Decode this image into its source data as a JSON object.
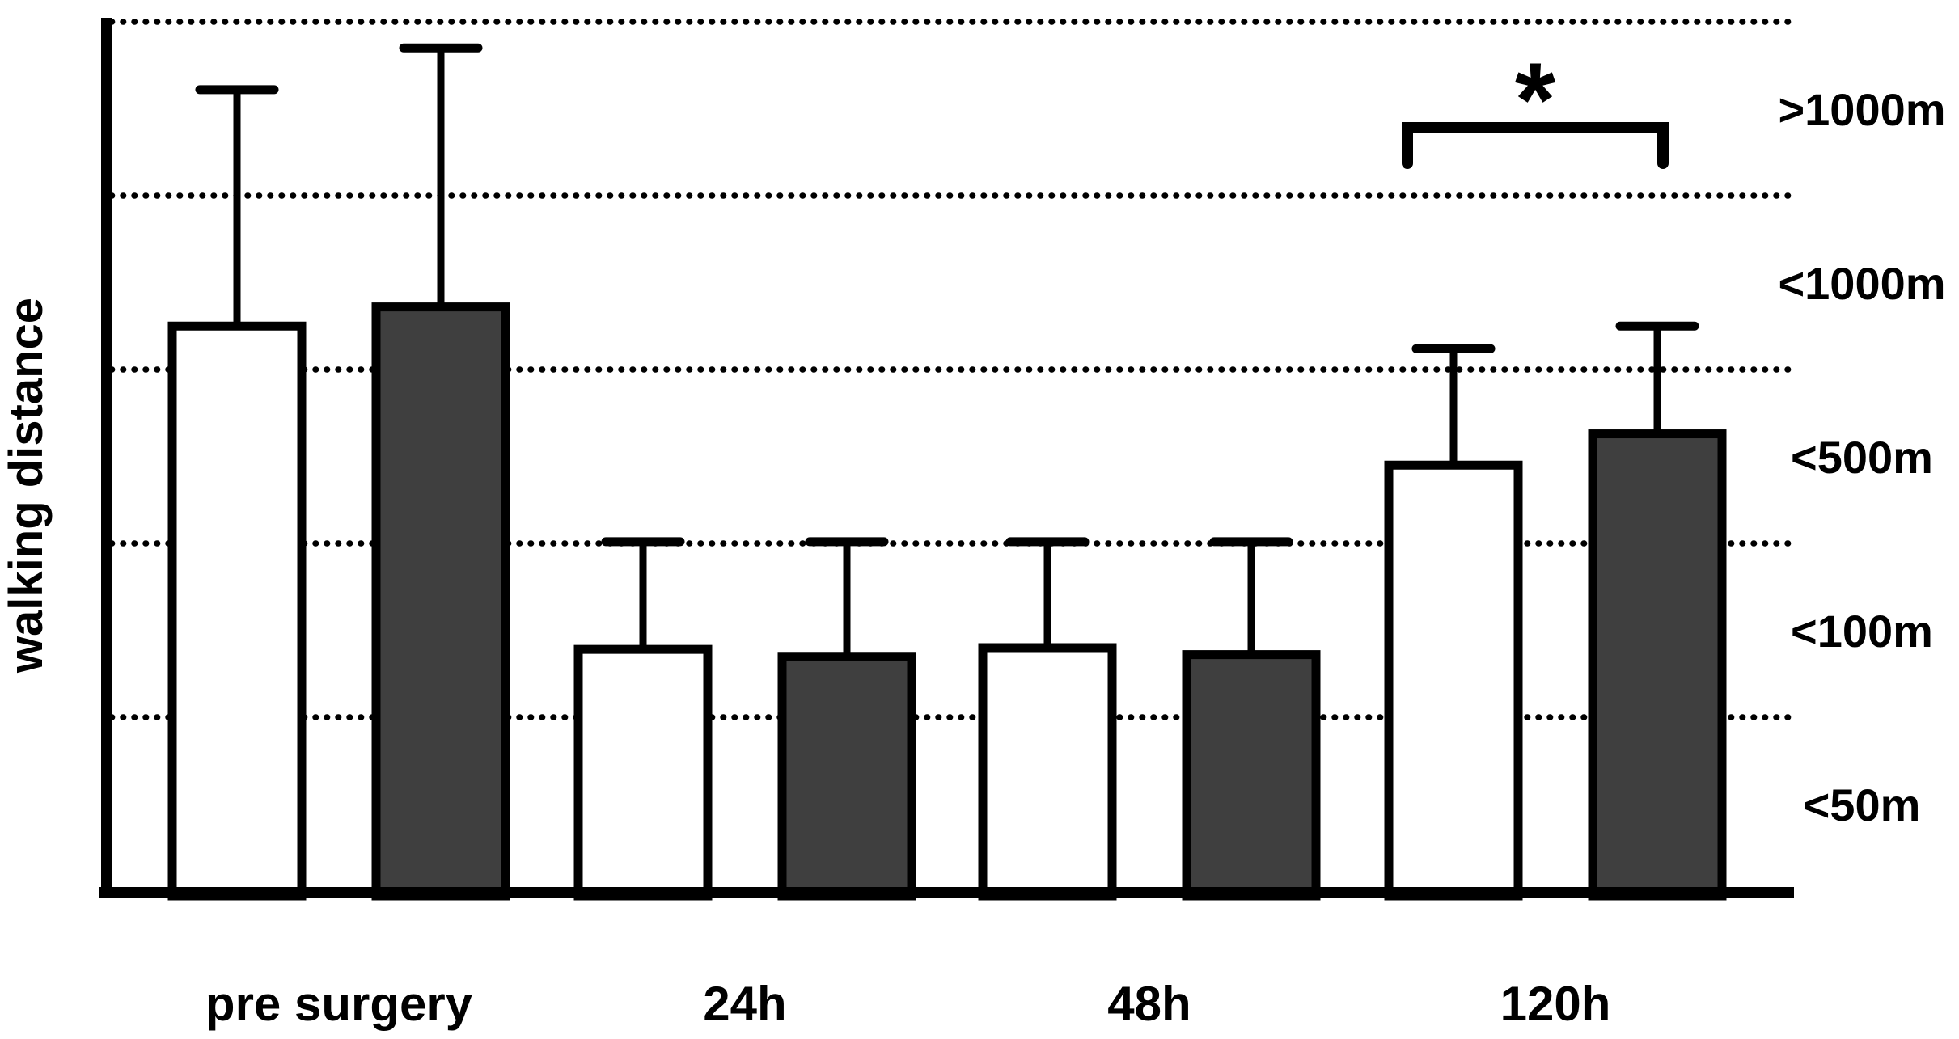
{
  "chart_data": {
    "type": "bar",
    "title": "",
    "xlabel": "",
    "ylabel": "walking distance",
    "categories": [
      "pre surgery",
      "24h",
      "48h",
      "120h"
    ],
    "series": [
      {
        "name": "white-bars",
        "fill": "#ffffff",
        "values": [
          3.25,
          1.39,
          1.4,
          2.45
        ],
        "error_top": [
          4.61,
          2.01,
          2.01,
          3.12
        ]
      },
      {
        "name": "dark-bars",
        "fill": "#3f3f3f",
        "values": [
          3.36,
          1.35,
          1.36,
          2.63
        ],
        "error_top": [
          4.85,
          2.01,
          2.01,
          3.25
        ]
      }
    ],
    "units": "y-axis band units; 1 unit = one dotted-gridline interval",
    "ylim": [
      0,
      5
    ],
    "y_zone_labels": [
      ">1000m",
      "<1000m",
      "<500m",
      "<100m",
      "<50m"
    ],
    "grid": "dotted horizontal lines at each band boundary",
    "legend": "none",
    "significance": {
      "symbol": "*",
      "category": "120h",
      "note": "bracket spanning the 120h bar pair"
    }
  },
  "colors": {
    "ink": "#000000",
    "dark_bar_fill": "#3f3f3f",
    "background": "#ffffff"
  }
}
